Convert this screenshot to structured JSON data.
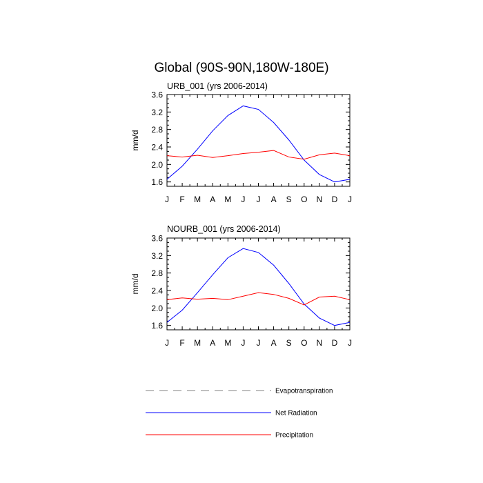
{
  "figure": {
    "title": "Global (90S-90N,180W-180E)"
  },
  "chart_data": [
    {
      "type": "line",
      "title": "URB_001 (yrs 2006-2014)",
      "xlabel": "",
      "ylabel": "mm/d",
      "categories": [
        "J",
        "F",
        "M",
        "A",
        "M",
        "J",
        "J",
        "A",
        "S",
        "O",
        "N",
        "D",
        "J"
      ],
      "ylim": [
        1.5,
        3.6
      ],
      "yticks": [
        1.6,
        2.0,
        2.4,
        2.8,
        3.2,
        3.6
      ],
      "ytick_labels": [
        "1.6",
        "2.0",
        "2.4",
        "2.8",
        "3.2",
        "3.6"
      ],
      "grid": false,
      "series": [
        {
          "name": "Net Radiation",
          "color": "#0000ff",
          "dash": "solid",
          "values": [
            1.66,
            1.96,
            2.35,
            2.77,
            3.12,
            3.34,
            3.26,
            2.96,
            2.56,
            2.1,
            1.77,
            1.6,
            1.66
          ]
        },
        {
          "name": "Precipitation",
          "color": "#ff0000",
          "dash": "solid",
          "values": [
            2.2,
            2.17,
            2.21,
            2.16,
            2.2,
            2.25,
            2.28,
            2.32,
            2.17,
            2.12,
            2.22,
            2.26,
            2.2
          ]
        }
      ]
    },
    {
      "type": "line",
      "title": "NOURB_001 (yrs 2006-2014)",
      "xlabel": "",
      "ylabel": "mm/d",
      "categories": [
        "J",
        "F",
        "M",
        "A",
        "M",
        "J",
        "J",
        "A",
        "S",
        "O",
        "N",
        "D",
        "J"
      ],
      "ylim": [
        1.5,
        3.6
      ],
      "yticks": [
        1.6,
        2.0,
        2.4,
        2.8,
        3.2,
        3.6
      ],
      "ytick_labels": [
        "1.6",
        "2.0",
        "2.4",
        "2.8",
        "3.2",
        "3.6"
      ],
      "grid": false,
      "series": [
        {
          "name": "Net Radiation",
          "color": "#0000ff",
          "dash": "solid",
          "values": [
            1.67,
            1.95,
            2.35,
            2.76,
            3.15,
            3.36,
            3.27,
            2.98,
            2.56,
            2.09,
            1.77,
            1.6,
            1.67
          ]
        },
        {
          "name": "Precipitation",
          "color": "#ff0000",
          "dash": "solid",
          "values": [
            2.19,
            2.23,
            2.2,
            2.22,
            2.19,
            2.27,
            2.35,
            2.31,
            2.22,
            2.07,
            2.25,
            2.27,
            2.19
          ]
        }
      ]
    }
  ],
  "legend": {
    "placement": "bottom",
    "entries": [
      {
        "label": "Evapotranspiration",
        "color": "#808080",
        "dash": "dashed"
      },
      {
        "label": "Net Radiation",
        "color": "#0000ff",
        "dash": "solid"
      },
      {
        "label": "Precipitation",
        "color": "#ff0000",
        "dash": "solid"
      }
    ]
  }
}
